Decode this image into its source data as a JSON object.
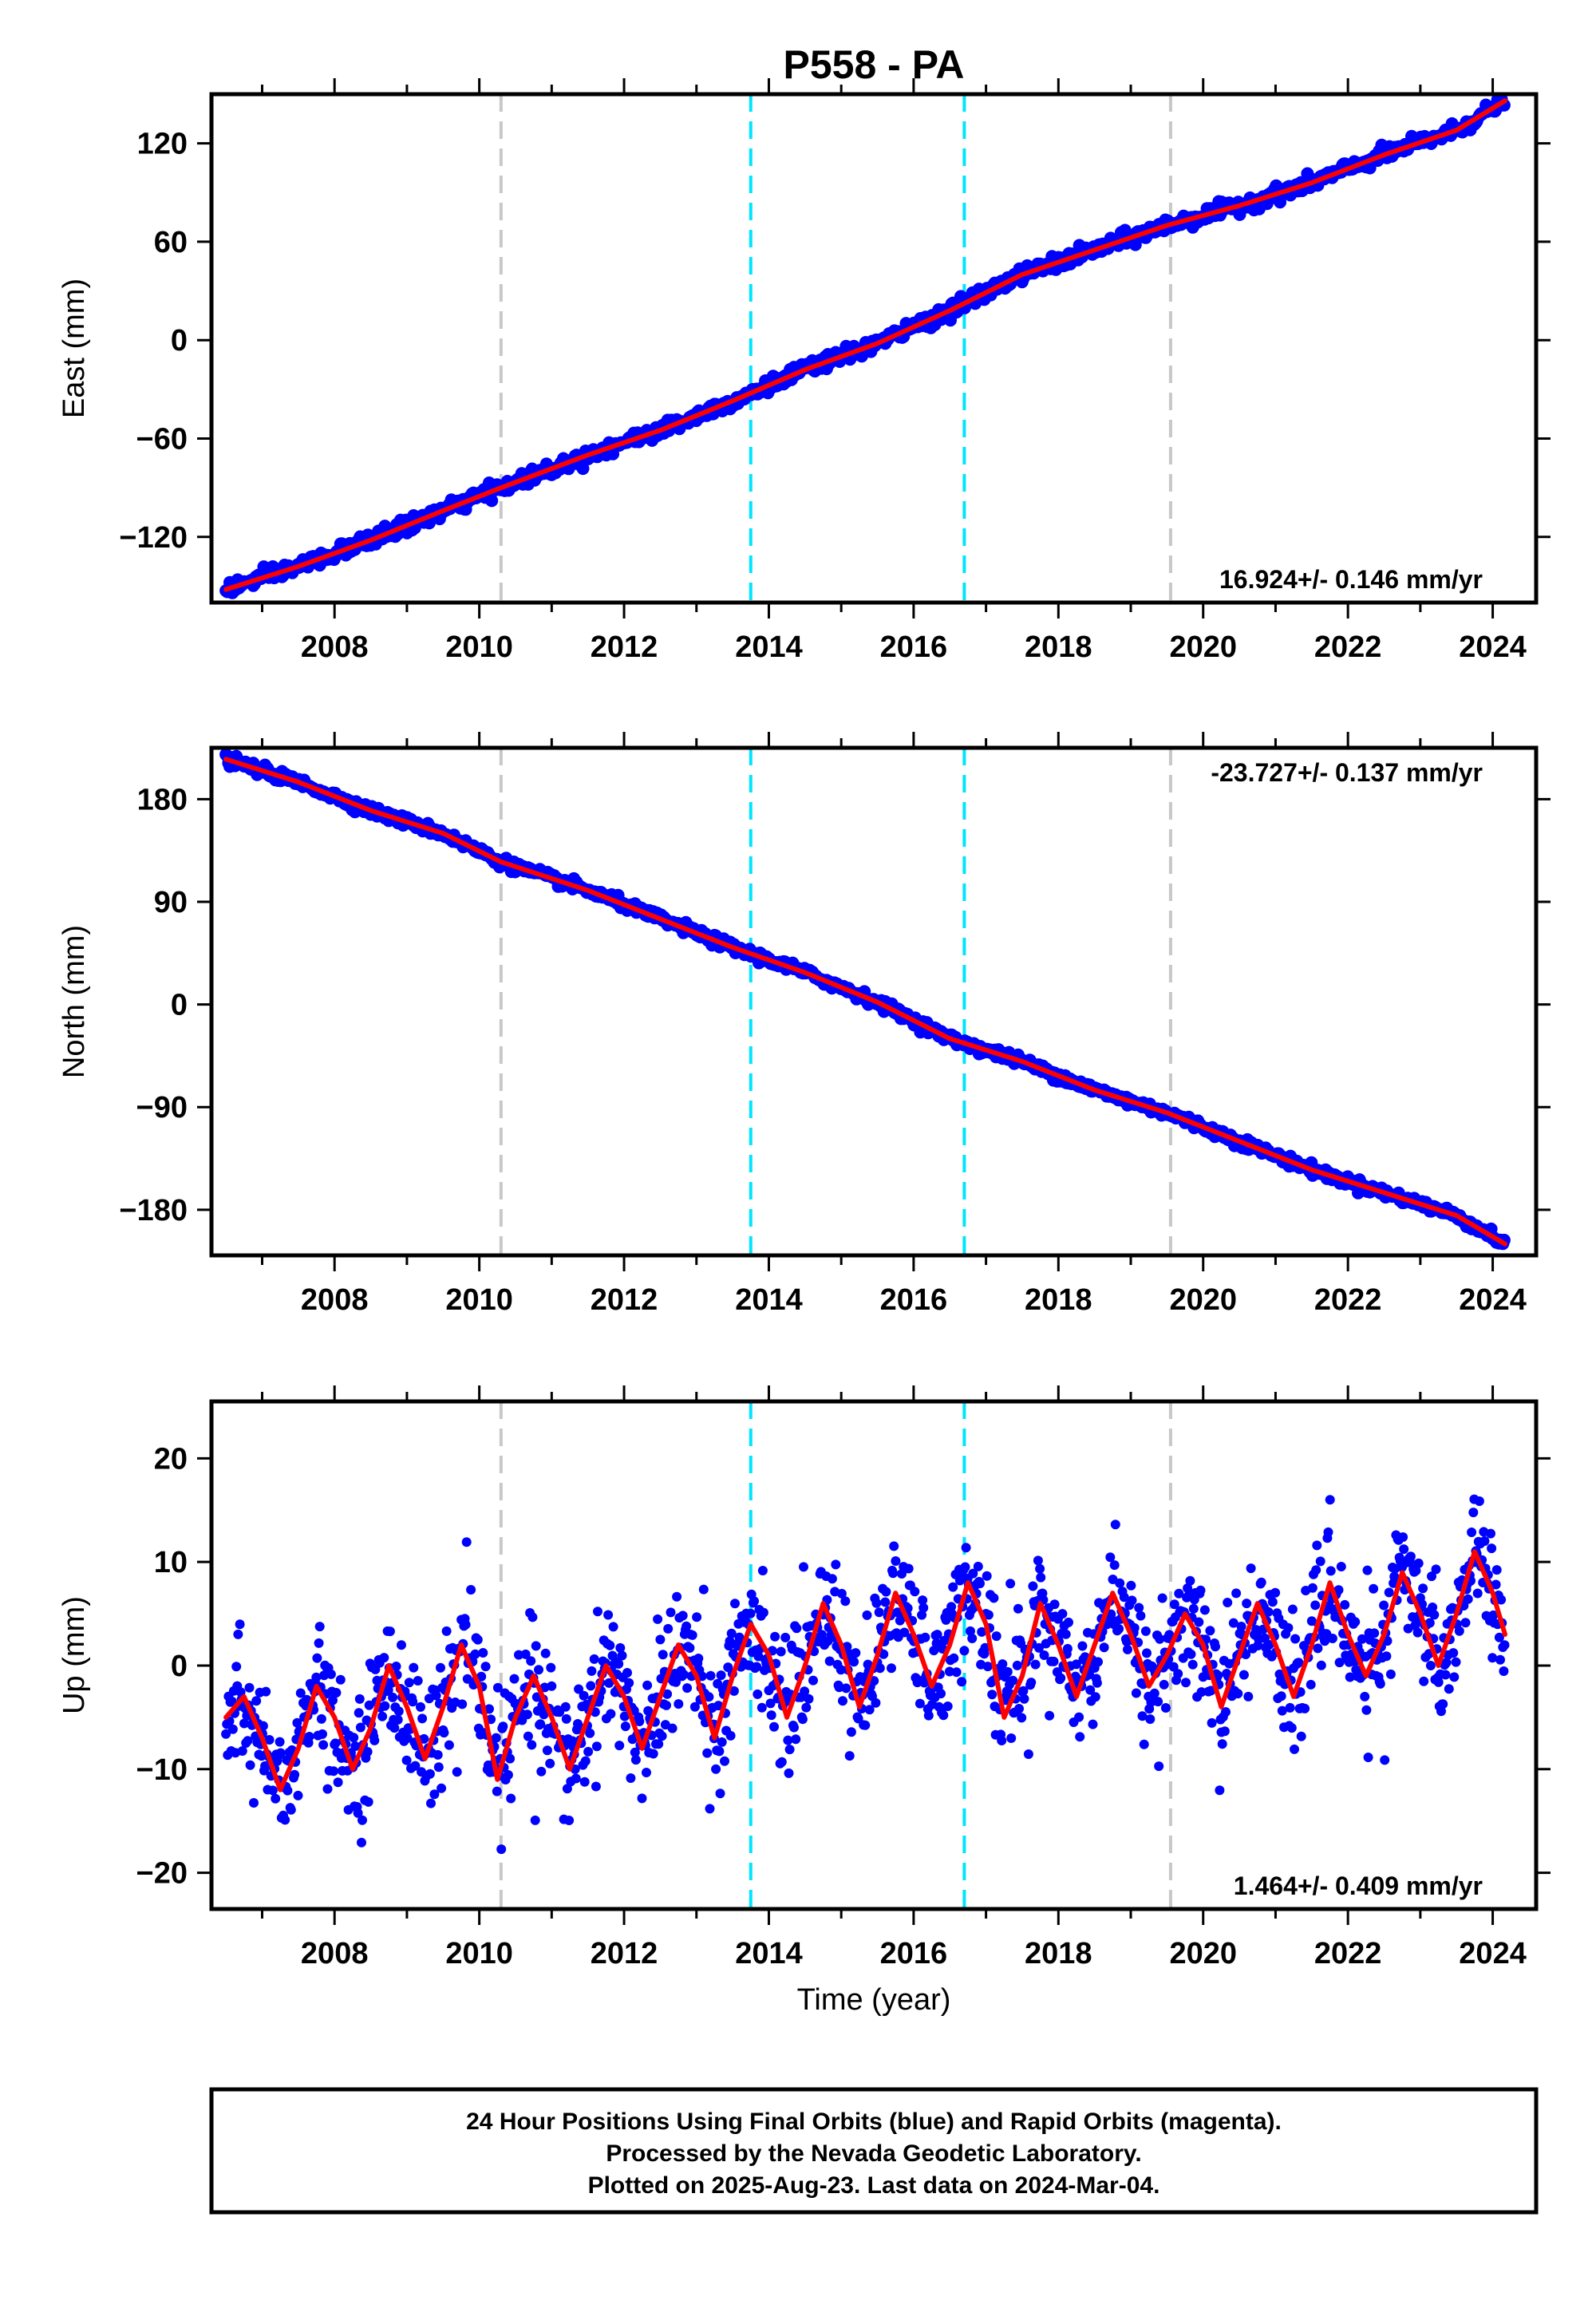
{
  "chart_data": {
    "type": "scatter",
    "title": "P558 - PA",
    "xlabel": "Time (year)",
    "xlim": [
      2006.3,
      2024.6
    ],
    "xticks": [
      2008,
      2010,
      2012,
      2014,
      2016,
      2018,
      2020,
      2022,
      2024
    ],
    "event_lines": {
      "gray": [
        2010.3,
        2019.55
      ],
      "cyan": [
        2013.75,
        2016.7
      ]
    },
    "colors": {
      "data": "#0000ff",
      "model": "#ff0000",
      "cyan_line": "#00e5ff",
      "gray_line": "#c8c8c8"
    },
    "panels": [
      {
        "ylabel": "East (mm)",
        "ylim": [
          -160,
          150
        ],
        "yticks": [
          -120,
          -60,
          0,
          60,
          120
        ],
        "rate_text": "16.924+/- 0.146 mm/yr",
        "rate_position": "bottom-right",
        "series": [
          {
            "type": "line",
            "x": [
              2006.5,
              2007.5,
              2008.5,
              2009.5,
              2010.3,
              2011.5,
              2012.5,
              2013.5,
              2014.5,
              2015.5,
              2016.5,
              2017.5,
              2018.5,
              2019.5,
              2020.5,
              2021.5,
              2022.5,
              2023.5,
              2024.17
            ],
            "y": [
              -152,
              -138,
              -122,
              -104,
              -90,
              -70,
              -55,
              -37,
              -18,
              -2,
              18,
              40,
              55,
              70,
              82,
              96,
              113,
              128,
              146
            ]
          }
        ]
      },
      {
        "ylabel": "North (mm)",
        "ylim": [
          -220,
          225
        ],
        "yticks": [
          -180,
          -90,
          0,
          90,
          180
        ],
        "rate_text": "-23.727+/- 0.137 mm/yr",
        "rate_position": "top-right",
        "series": [
          {
            "type": "line",
            "x": [
              2006.5,
              2007.5,
              2008.5,
              2009.5,
              2010.3,
              2011.5,
              2012.5,
              2013.5,
              2014.5,
              2015.5,
              2016.5,
              2017.5,
              2018.5,
              2019.5,
              2020.5,
              2021.5,
              2022.5,
              2023.5,
              2024.17
            ],
            "y": [
              215,
              195,
              170,
              150,
              125,
              100,
              75,
              50,
              28,
              2,
              -30,
              -50,
              -75,
              -95,
              -120,
              -145,
              -165,
              -185,
              -210
            ]
          }
        ]
      },
      {
        "ylabel": "Up (mm)",
        "ylim": [
          -23.5,
          25.5
        ],
        "yticks": [
          -20,
          -10,
          0,
          10,
          20
        ],
        "rate_text": "1.464+/- 0.409 mm/yr",
        "rate_position": "bottom-right",
        "series": [
          {
            "type": "line",
            "x": [
              2006.5,
              2006.75,
              2007.0,
              2007.25,
              2007.5,
              2007.75,
              2008.0,
              2008.25,
              2008.5,
              2008.75,
              2009.0,
              2009.25,
              2009.5,
              2009.75,
              2010.0,
              2010.25,
              2010.5,
              2010.75,
              2011.0,
              2011.25,
              2011.5,
              2011.75,
              2012.0,
              2012.25,
              2012.5,
              2012.75,
              2013.0,
              2013.25,
              2013.5,
              2013.75,
              2014.0,
              2014.25,
              2014.5,
              2014.75,
              2015.0,
              2015.25,
              2015.5,
              2015.75,
              2016.0,
              2016.25,
              2016.5,
              2016.75,
              2017.0,
              2017.25,
              2017.5,
              2017.75,
              2018.0,
              2018.25,
              2018.5,
              2018.75,
              2019.0,
              2019.25,
              2019.5,
              2019.75,
              2020.0,
              2020.25,
              2020.5,
              2020.75,
              2021.0,
              2021.25,
              2021.5,
              2021.75,
              2022.0,
              2022.25,
              2022.5,
              2022.75,
              2023.0,
              2023.25,
              2023.5,
              2023.75,
              2024.0,
              2024.17
            ],
            "y": [
              -5,
              -3,
              -7,
              -12,
              -8,
              -2,
              -5,
              -10,
              -6,
              0,
              -4,
              -9,
              -4,
              2,
              -2,
              -11,
              -5,
              -1,
              -5,
              -10,
              -5,
              0,
              -3,
              -8,
              -3,
              2,
              -1,
              -7,
              -1,
              4,
              1,
              -5,
              0,
              6,
              2,
              -4,
              1,
              7,
              3,
              -2,
              2,
              8,
              4,
              -5,
              -1,
              6,
              2,
              -3,
              2,
              7,
              3,
              -2,
              1,
              5,
              2,
              -4,
              1,
              6,
              2,
              -3,
              2,
              8,
              3,
              -1,
              3,
              9,
              5,
              0,
              5,
              11,
              7,
              3
            ]
          }
        ]
      }
    ]
  },
  "footer": {
    "lines": [
      "24 Hour Positions Using Final Orbits (blue) and Rapid Orbits (magenta).",
      "Processed by the Nevada Geodetic Laboratory.",
      "Plotted on 2025-Aug-23. Last data on 2024-Mar-04."
    ]
  }
}
